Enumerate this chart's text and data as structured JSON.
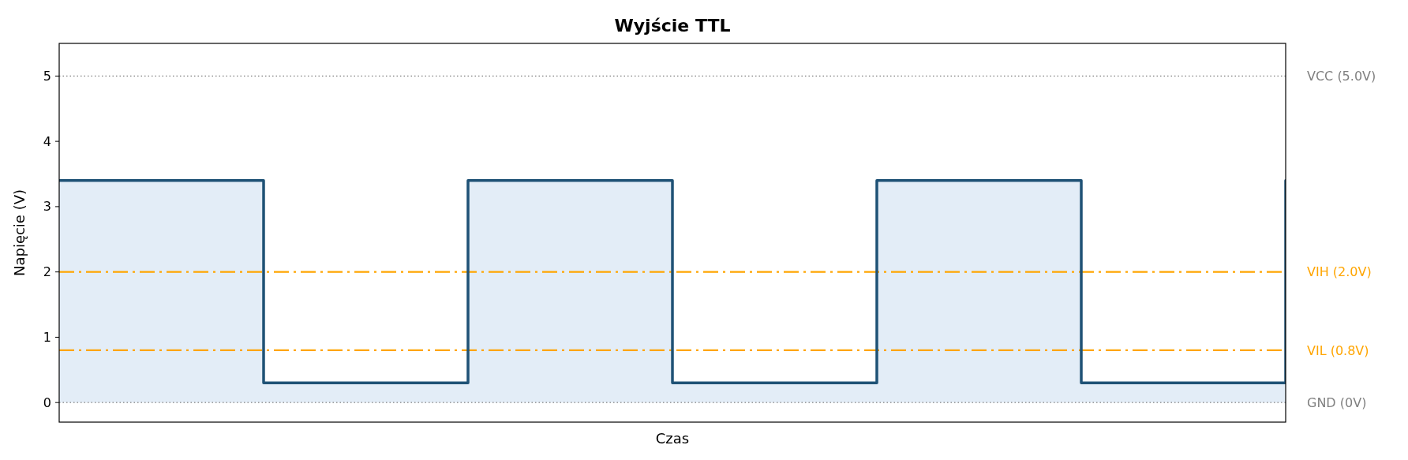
{
  "chart_data": {
    "type": "step",
    "title": "Wyjście TTL",
    "xlabel": "Czas",
    "ylabel": "Napięcie (V)",
    "categories": [
      null,
      null,
      null,
      null,
      null,
      null,
      null
    ],
    "series": [
      {
        "type": "area",
        "color": "#e3edf7",
        "values": [
          3.4,
          0.3,
          3.4,
          0.3,
          3.4,
          0.3,
          3.4
        ]
      },
      {
        "type": "step",
        "color": "#1f5276",
        "values": [
          3.4,
          0.3,
          3.4,
          0.3,
          3.4,
          0.3,
          3.4
        ]
      }
    ],
    "ylim": [
      -0.3,
      5.5
    ],
    "yticks": [
      0,
      1,
      2,
      3,
      4,
      5
    ],
    "tick_labels": "y",
    "ref_lines": [
      {
        "axis": "y",
        "value": 5,
        "label": "VCC (5.0V)",
        "color": "#808080",
        "line_style": "dotted"
      },
      {
        "axis": "y",
        "value": 2,
        "label": "VIH (2.0V)",
        "color": "#ffa500",
        "line_style": "dashed"
      },
      {
        "axis": "y",
        "value": 0.8,
        "label": "VIL (0.8V)",
        "color": "#ffa500",
        "line_style": "dashed"
      },
      {
        "axis": "y",
        "value": 0,
        "label": "GND (0V)",
        "color": "#808080",
        "line_style": "dotted"
      }
    ]
  }
}
